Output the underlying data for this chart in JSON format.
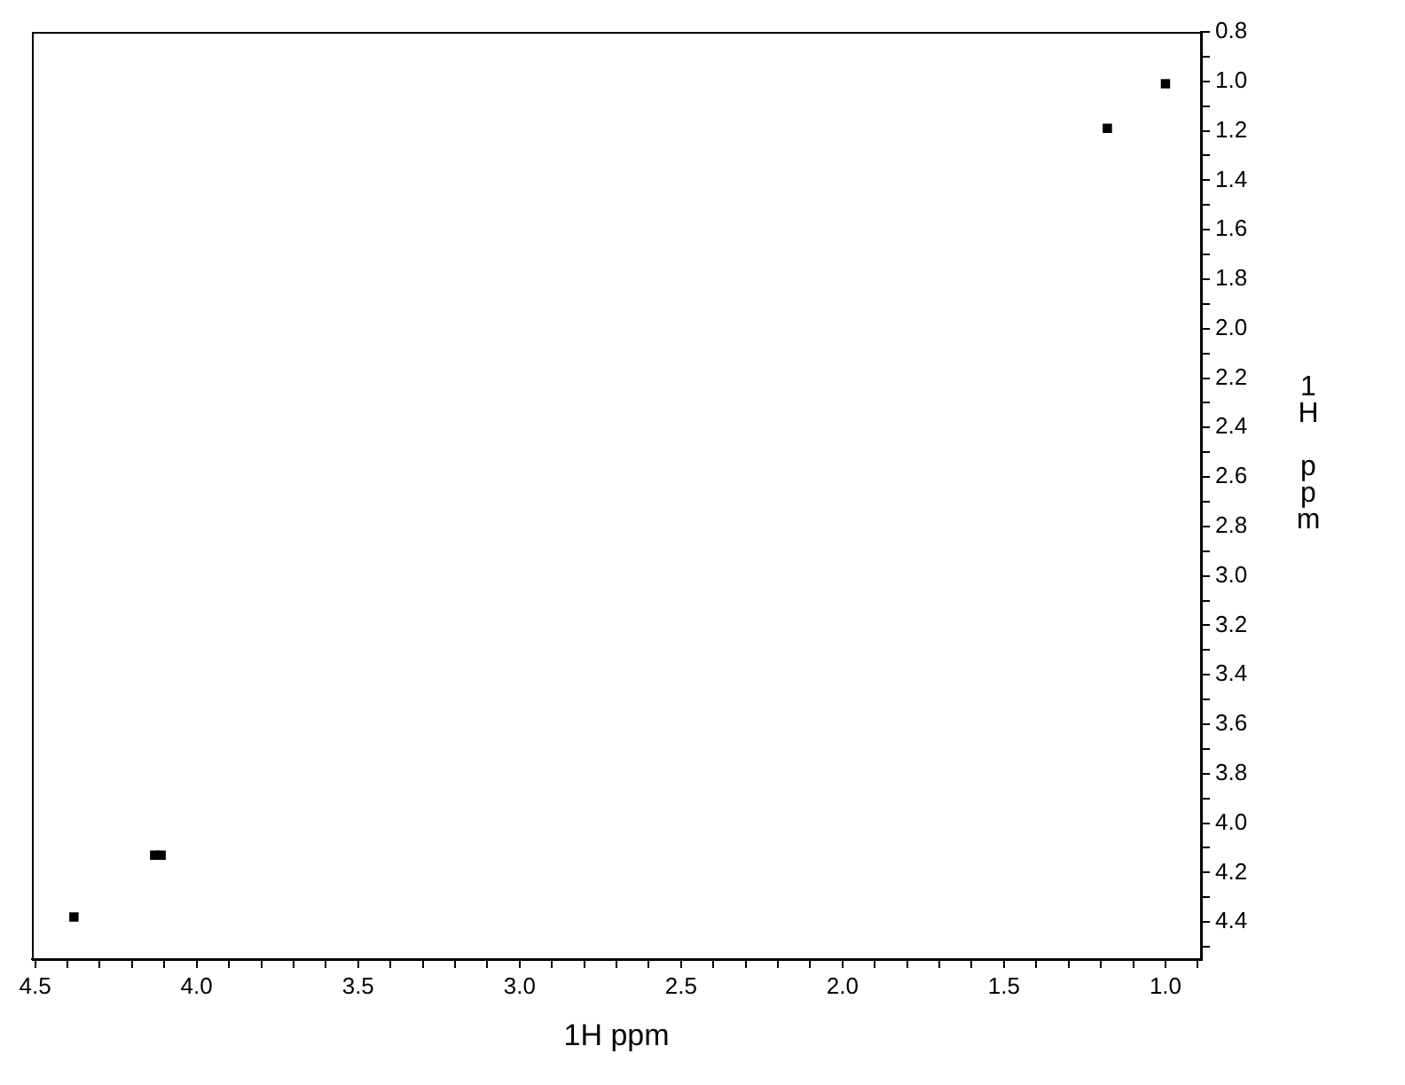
{
  "chart_data": {
    "type": "scatter",
    "xlabel": "1H ppm",
    "ylabel": "1H ppm",
    "x": [
      1.0,
      1.18,
      4.13,
      4.11,
      4.38
    ],
    "series": [
      {
        "color": "#000000",
        "values": [
          1.01,
          1.19,
          4.13,
          4.13,
          4.38
        ]
      }
    ],
    "xlim": [
      4.51,
      0.89
    ],
    "ylim": [
      4.55,
      0.8
    ],
    "xticks": [
      4.5,
      {
        "value": 4.4,
        "label": null
      },
      {
        "value": 4.3,
        "label": null
      },
      {
        "value": 4.2,
        "label": null
      },
      {
        "value": 4.1,
        "label": null
      },
      {
        "value": 4.0,
        "label": "4.0"
      },
      {
        "value": 3.9,
        "label": null
      },
      {
        "value": 3.8,
        "label": null
      },
      {
        "value": 3.7,
        "label": null
      },
      {
        "value": 3.6,
        "label": null
      },
      3.5,
      {
        "value": 3.4,
        "label": null
      },
      {
        "value": 3.3,
        "label": null
      },
      {
        "value": 3.2,
        "label": null
      },
      {
        "value": 3.1,
        "label": null
      },
      {
        "value": 3.0,
        "label": "3.0"
      },
      {
        "value": 2.9,
        "label": null
      },
      {
        "value": 2.8,
        "label": null
      },
      {
        "value": 2.7,
        "label": null
      },
      {
        "value": 2.6,
        "label": null
      },
      2.5,
      {
        "value": 2.4,
        "label": null
      },
      {
        "value": 2.3,
        "label": null
      },
      {
        "value": 2.2,
        "label": null
      },
      {
        "value": 2.1,
        "label": null
      },
      {
        "value": 2.0,
        "label": "2.0"
      },
      {
        "value": 1.9,
        "label": null
      },
      {
        "value": 1.8,
        "label": null
      },
      {
        "value": 1.7,
        "label": null
      },
      {
        "value": 1.6,
        "label": null
      },
      1.5,
      {
        "value": 1.4,
        "label": null
      },
      {
        "value": 1.3,
        "label": null
      },
      {
        "value": 1.2,
        "label": null
      },
      {
        "value": 1.1,
        "label": null
      },
      {
        "value": 1.0,
        "label": "1.0"
      },
      {
        "value": 0.9,
        "label": null
      }
    ],
    "yticks": [
      0.8,
      {
        "value": 0.9,
        "label": null
      },
      {
        "value": 1.0,
        "label": "1.0"
      },
      {
        "value": 1.1,
        "label": null
      },
      1.2,
      {
        "value": 1.3,
        "label": null
      },
      1.4,
      {
        "value": 1.5,
        "label": null
      },
      1.6,
      {
        "value": 1.7,
        "label": null
      },
      1.8,
      {
        "value": 1.9,
        "label": null
      },
      {
        "value": 2.0,
        "label": "2.0"
      },
      {
        "value": 2.1,
        "label": null
      },
      2.2,
      {
        "value": 2.3,
        "label": null
      },
      2.4,
      {
        "value": 2.5,
        "label": null
      },
      2.6,
      {
        "value": 2.7,
        "label": null
      },
      2.8,
      {
        "value": 2.9,
        "label": null
      },
      {
        "value": 3.0,
        "label": "3.0"
      },
      {
        "value": 3.1,
        "label": null
      },
      3.2,
      {
        "value": 3.3,
        "label": null
      },
      3.4,
      {
        "value": 3.5,
        "label": null
      },
      3.6,
      {
        "value": 3.7,
        "label": null
      },
      3.8,
      {
        "value": 3.9,
        "label": null
      },
      {
        "value": 4.0,
        "label": "4.0"
      },
      {
        "value": 4.1,
        "label": null
      },
      4.2,
      {
        "value": 4.3,
        "label": null
      },
      4.4,
      {
        "value": 4.5,
        "label": null
      }
    ],
    "grid": false,
    "legend": false,
    "marker": "square"
  }
}
